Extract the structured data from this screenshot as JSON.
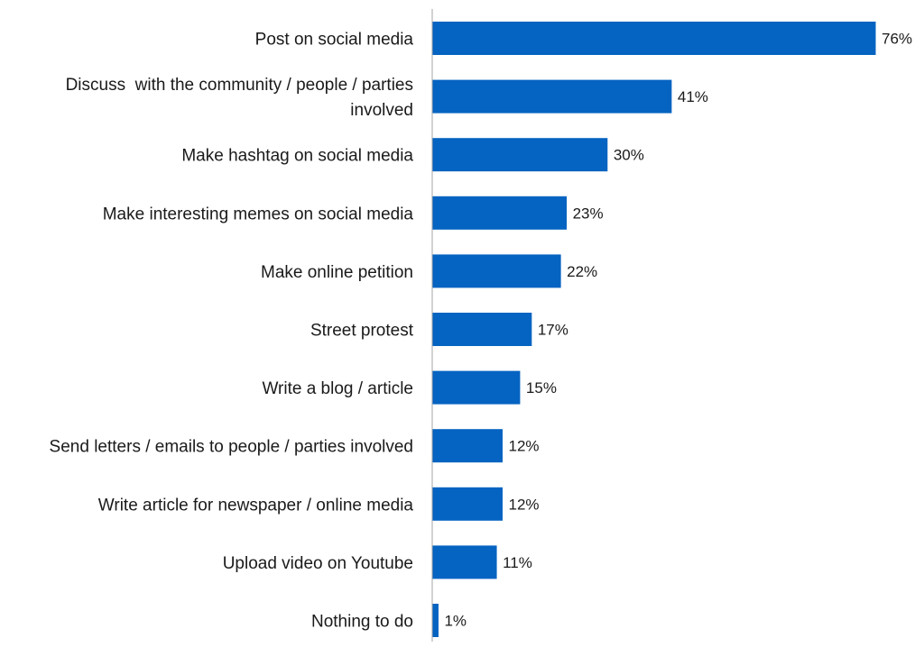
{
  "chart_data": {
    "type": "bar",
    "orientation": "horizontal",
    "categories": [
      "Post on social media",
      "Discuss  with the community / people / parties involved",
      "Make hashtag on social media",
      "Make interesting memes on social media",
      "Make online petition",
      "Street protest",
      "Write a blog / article",
      "Send letters / emails to people / parties involved",
      "Write article for newspaper / online media",
      "Upload video on Youtube",
      "Nothing to do"
    ],
    "category_lines": [
      [
        "Post on social media"
      ],
      [
        "Discuss  with the community / people / parties",
        "involved"
      ],
      [
        "Make hashtag on social media"
      ],
      [
        "Make interesting memes on social media"
      ],
      [
        "Make online petition"
      ],
      [
        "Street protest"
      ],
      [
        "Write a blog / article"
      ],
      [
        "Send letters / emails to people / parties involved"
      ],
      [
        "Write article for newspaper / online media"
      ],
      [
        "Upload video on Youtube"
      ],
      [
        "Nothing to do"
      ]
    ],
    "values": [
      76,
      41,
      30,
      23,
      22,
      17,
      15,
      12,
      12,
      11,
      1
    ],
    "value_labels": [
      "76%",
      "41%",
      "30%",
      "23%",
      "22%",
      "17%",
      "15%",
      "12%",
      "12%",
      "11%",
      "1%"
    ],
    "unit": "%",
    "title": "",
    "xlabel": "",
    "ylabel": "",
    "xlim": [
      0,
      76
    ],
    "grid": false,
    "legend": "none",
    "bar_color": "#0563C1",
    "axis_color": "#a6a6a6"
  }
}
